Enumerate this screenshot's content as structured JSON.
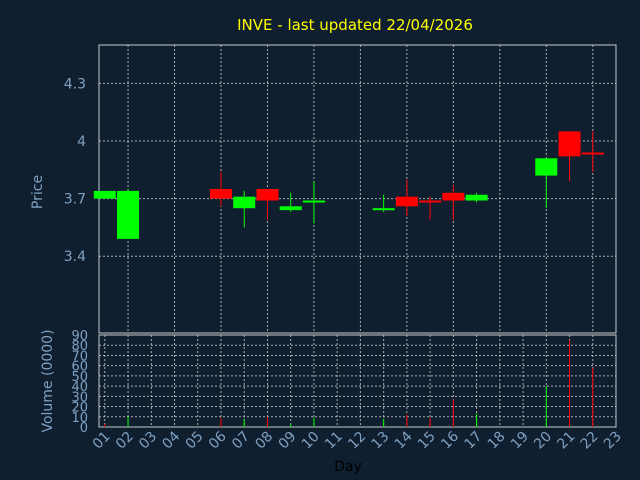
{
  "chart_data": [
    {
      "type": "candlestick",
      "title": "INVE - last updated 22/04/2026",
      "ylabel": "Price",
      "ylim": [
        3.0,
        4.5
      ],
      "yticks": [
        "3.4",
        "3.7",
        "4",
        "4.3"
      ],
      "grid": true,
      "colors": {
        "up": "#00ff00",
        "down": "#ff0000"
      },
      "candles": [
        {
          "day": 1,
          "open": 3.7,
          "close": 3.74,
          "high": 3.74,
          "low": 3.7
        },
        {
          "day": 2,
          "open": 3.49,
          "close": 3.74,
          "high": 3.75,
          "low": 3.49
        },
        {
          "day": 6,
          "open": 3.75,
          "close": 3.7,
          "high": 3.84,
          "low": 3.66
        },
        {
          "day": 7,
          "open": 3.65,
          "close": 3.71,
          "high": 3.74,
          "low": 3.55
        },
        {
          "day": 8,
          "open": 3.75,
          "close": 3.69,
          "high": 3.75,
          "low": 3.59
        },
        {
          "day": 9,
          "open": 3.64,
          "close": 3.66,
          "high": 3.73,
          "low": 3.63
        },
        {
          "day": 10,
          "open": 3.68,
          "close": 3.69,
          "high": 3.79,
          "low": 3.57
        },
        {
          "day": 13,
          "open": 3.64,
          "close": 3.65,
          "high": 3.72,
          "low": 3.63
        },
        {
          "day": 14,
          "open": 3.71,
          "close": 3.66,
          "high": 3.8,
          "low": 3.61
        },
        {
          "day": 15,
          "open": 3.69,
          "close": 3.68,
          "high": 3.71,
          "low": 3.59
        },
        {
          "day": 16,
          "open": 3.73,
          "close": 3.69,
          "high": 3.77,
          "low": 3.59
        },
        {
          "day": 17,
          "open": 3.69,
          "close": 3.72,
          "high": 3.73,
          "low": 3.68
        },
        {
          "day": 20,
          "open": 3.82,
          "close": 3.91,
          "high": 3.91,
          "low": 3.65
        },
        {
          "day": 21,
          "open": 4.05,
          "close": 3.92,
          "high": 4.05,
          "low": 3.79
        },
        {
          "day": 22,
          "open": 3.94,
          "close": 3.93,
          "high": 4.05,
          "low": 3.84
        }
      ]
    },
    {
      "type": "bar",
      "ylabel": "Volume (0000)",
      "xlabel": "Day",
      "ylim": [
        0,
        90
      ],
      "yticks": [
        "0",
        "10",
        "20",
        "30",
        "40",
        "50",
        "60",
        "70",
        "80",
        "90"
      ],
      "grid": true,
      "categories": [
        "01",
        "02",
        "03",
        "04",
        "05",
        "06",
        "07",
        "08",
        "09",
        "10",
        "11",
        "12",
        "13",
        "14",
        "15",
        "16",
        "17",
        "18",
        "19",
        "20",
        "21",
        "22",
        "23"
      ],
      "bars": [
        {
          "day": 1,
          "value": 3,
          "color": "#ff0000"
        },
        {
          "day": 2,
          "value": 10,
          "color": "#00ff00"
        },
        {
          "day": 6,
          "value": 9,
          "color": "#ff0000"
        },
        {
          "day": 7,
          "value": 8,
          "color": "#00ff00"
        },
        {
          "day": 8,
          "value": 10,
          "color": "#ff0000"
        },
        {
          "day": 9,
          "value": 3,
          "color": "#00ff00"
        },
        {
          "day": 10,
          "value": 9,
          "color": "#00ff00"
        },
        {
          "day": 13,
          "value": 8,
          "color": "#00ff00"
        },
        {
          "day": 14,
          "value": 12,
          "color": "#ff0000"
        },
        {
          "day": 15,
          "value": 9,
          "color": "#ff0000"
        },
        {
          "day": 16,
          "value": 27,
          "color": "#ff0000"
        },
        {
          "day": 17,
          "value": 13,
          "color": "#00ff00"
        },
        {
          "day": 20,
          "value": 40,
          "color": "#00ff00"
        },
        {
          "day": 21,
          "value": 85,
          "color": "#ff0000"
        },
        {
          "day": 22,
          "value": 58,
          "color": "#ff0000"
        }
      ]
    }
  ]
}
